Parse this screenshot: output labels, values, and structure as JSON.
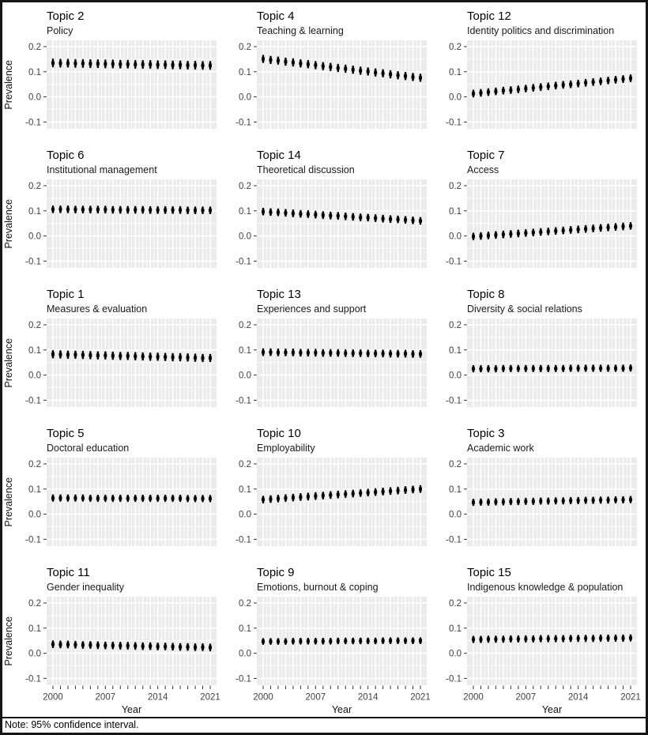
{
  "figure": {
    "ylabel": "Prevalence",
    "xlabel": "Year",
    "note": "Note: 95% confidence interval.",
    "panel_bg": "#ebebeb",
    "grid_color": "#ffffff",
    "point_color": "#000000",
    "tick_color": "#333333",
    "tick_label_color": "#404040"
  },
  "chart_data": {
    "type": "scatter",
    "description": "Faceted topic prevalence over time with 95% confidence interval error bars",
    "layout": {
      "rows": 5,
      "cols": 3,
      "legend": "none",
      "grid": "on"
    },
    "x": [
      2000,
      2001,
      2002,
      2003,
      2004,
      2005,
      2006,
      2007,
      2008,
      2009,
      2010,
      2011,
      2012,
      2013,
      2014,
      2015,
      2016,
      2017,
      2018,
      2019,
      2020,
      2021
    ],
    "xlim": [
      2000,
      2021
    ],
    "ylim": [
      -0.127,
      0.225
    ],
    "yticks": [
      {
        "v": 0.2,
        "label": "0.2"
      },
      {
        "v": 0.1,
        "label": "0.1"
      },
      {
        "v": 0.0,
        "label": "0.0"
      },
      {
        "v": -0.1,
        "label": "-0.1"
      }
    ],
    "yticks_minor": [
      0.15,
      0.05,
      -0.05
    ],
    "xticks_labeled": [
      {
        "v": 2000,
        "label": "2000"
      },
      {
        "v": 2007,
        "label": "2007"
      },
      {
        "v": 2014,
        "label": "2014"
      },
      {
        "v": 2021,
        "label": "2021"
      }
    ],
    "error_bar": "95% confidence interval",
    "panels": [
      {
        "title": "Topic 2",
        "subtitle": "Policy",
        "ci": 0.014,
        "values": [
          0.135,
          0.134,
          0.134,
          0.133,
          0.133,
          0.132,
          0.132,
          0.131,
          0.131,
          0.13,
          0.13,
          0.129,
          0.129,
          0.129,
          0.128,
          0.128,
          0.127,
          0.127,
          0.126,
          0.126,
          0.125,
          0.125
        ]
      },
      {
        "title": "Topic 4",
        "subtitle": "Teaching & learning",
        "ci": 0.013,
        "values": [
          0.151,
          0.147,
          0.144,
          0.14,
          0.137,
          0.133,
          0.13,
          0.126,
          0.122,
          0.119,
          0.115,
          0.112,
          0.108,
          0.104,
          0.101,
          0.097,
          0.094,
          0.09,
          0.086,
          0.083,
          0.079,
          0.076
        ]
      },
      {
        "title": "Topic 12",
        "subtitle": "Identity politics and discrimination",
        "ci": 0.012,
        "values": [
          0.013,
          0.016,
          0.019,
          0.022,
          0.025,
          0.027,
          0.03,
          0.033,
          0.036,
          0.039,
          0.042,
          0.045,
          0.048,
          0.05,
          0.053,
          0.056,
          0.059,
          0.062,
          0.065,
          0.068,
          0.071,
          0.074
        ]
      },
      {
        "title": "Topic 6",
        "subtitle": "Institutional management",
        "ci": 0.012,
        "values": [
          0.106,
          0.106,
          0.106,
          0.105,
          0.105,
          0.105,
          0.105,
          0.105,
          0.104,
          0.104,
          0.104,
          0.104,
          0.104,
          0.103,
          0.103,
          0.103,
          0.103,
          0.103,
          0.102,
          0.102,
          0.102,
          0.102
        ]
      },
      {
        "title": "Topic 14",
        "subtitle": "Theoretical discussion",
        "ci": 0.012,
        "values": [
          0.097,
          0.095,
          0.094,
          0.092,
          0.09,
          0.088,
          0.087,
          0.085,
          0.083,
          0.081,
          0.08,
          0.078,
          0.076,
          0.074,
          0.073,
          0.071,
          0.069,
          0.067,
          0.066,
          0.064,
          0.062,
          0.06
        ]
      },
      {
        "title": "Topic 7",
        "subtitle": "Access",
        "ci": 0.012,
        "values": [
          -0.002,
          0.0,
          0.002,
          0.004,
          0.006,
          0.008,
          0.01,
          0.012,
          0.014,
          0.016,
          0.018,
          0.02,
          0.022,
          0.024,
          0.026,
          0.028,
          0.03,
          0.032,
          0.034,
          0.036,
          0.038,
          0.04
        ]
      },
      {
        "title": "Topic 1",
        "subtitle": "Measures & evaluation",
        "ci": 0.013,
        "values": [
          0.083,
          0.082,
          0.081,
          0.081,
          0.08,
          0.079,
          0.078,
          0.078,
          0.077,
          0.076,
          0.076,
          0.075,
          0.074,
          0.073,
          0.073,
          0.072,
          0.071,
          0.071,
          0.07,
          0.069,
          0.068,
          0.068
        ]
      },
      {
        "title": "Topic 13",
        "subtitle": "Experiences and support",
        "ci": 0.012,
        "values": [
          0.091,
          0.091,
          0.09,
          0.09,
          0.09,
          0.089,
          0.089,
          0.089,
          0.088,
          0.088,
          0.088,
          0.087,
          0.087,
          0.087,
          0.086,
          0.086,
          0.086,
          0.085,
          0.085,
          0.085,
          0.084,
          0.084
        ]
      },
      {
        "title": "Topic 8",
        "subtitle": "Diversity & social relations",
        "ci": 0.011,
        "values": [
          0.025,
          0.025,
          0.025,
          0.025,
          0.026,
          0.026,
          0.026,
          0.026,
          0.026,
          0.026,
          0.026,
          0.026,
          0.026,
          0.027,
          0.027,
          0.027,
          0.027,
          0.027,
          0.027,
          0.027,
          0.027,
          0.028
        ]
      },
      {
        "title": "Topic 5",
        "subtitle": "Doctoral education",
        "ci": 0.011,
        "values": [
          0.064,
          0.064,
          0.064,
          0.064,
          0.064,
          0.063,
          0.063,
          0.063,
          0.063,
          0.063,
          0.063,
          0.063,
          0.063,
          0.063,
          0.063,
          0.063,
          0.063,
          0.063,
          0.062,
          0.062,
          0.062,
          0.062
        ]
      },
      {
        "title": "Topic 10",
        "subtitle": "Employability",
        "ci": 0.012,
        "values": [
          0.058,
          0.06,
          0.062,
          0.064,
          0.066,
          0.068,
          0.07,
          0.072,
          0.074,
          0.076,
          0.078,
          0.08,
          0.082,
          0.084,
          0.086,
          0.088,
          0.09,
          0.092,
          0.094,
          0.096,
          0.098,
          0.1
        ]
      },
      {
        "title": "Topic 3",
        "subtitle": "Academic work",
        "ci": 0.011,
        "values": [
          0.047,
          0.048,
          0.048,
          0.049,
          0.049,
          0.05,
          0.05,
          0.051,
          0.051,
          0.052,
          0.052,
          0.053,
          0.053,
          0.054,
          0.054,
          0.055,
          0.055,
          0.056,
          0.056,
          0.057,
          0.057,
          0.058
        ]
      },
      {
        "title": "Topic 11",
        "subtitle": "Gender inequality",
        "ci": 0.012,
        "values": [
          0.036,
          0.035,
          0.035,
          0.034,
          0.033,
          0.033,
          0.032,
          0.031,
          0.031,
          0.03,
          0.03,
          0.029,
          0.028,
          0.028,
          0.027,
          0.027,
          0.026,
          0.025,
          0.025,
          0.024,
          0.024,
          0.023
        ]
      },
      {
        "title": "Topic 9",
        "subtitle": "Emotions, burnout & coping",
        "ci": 0.01,
        "values": [
          0.047,
          0.047,
          0.047,
          0.047,
          0.048,
          0.048,
          0.048,
          0.048,
          0.048,
          0.048,
          0.049,
          0.049,
          0.049,
          0.049,
          0.049,
          0.049,
          0.05,
          0.05,
          0.05,
          0.05,
          0.05,
          0.05
        ]
      },
      {
        "title": "Topic 15",
        "subtitle": "Indigenous knowledge & population",
        "ci": 0.011,
        "values": [
          0.055,
          0.055,
          0.056,
          0.056,
          0.056,
          0.057,
          0.057,
          0.057,
          0.057,
          0.058,
          0.058,
          0.058,
          0.058,
          0.059,
          0.059,
          0.059,
          0.059,
          0.06,
          0.06,
          0.06,
          0.06,
          0.061
        ]
      }
    ]
  }
}
